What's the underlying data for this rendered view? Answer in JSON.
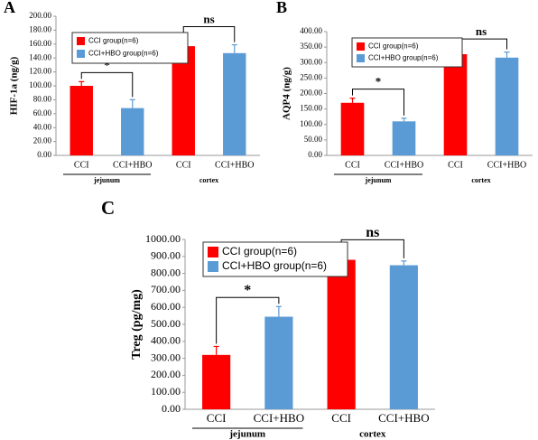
{
  "chart_data": [
    {
      "type": "bar",
      "panel": "A",
      "ylabel": "HIF-1a (ng/g)",
      "categories": [
        "CCI",
        "CCI+HBO",
        "CCI",
        "CCI+HBO"
      ],
      "group_labels": [
        "jejunum",
        "cortex"
      ],
      "series": [
        {
          "name": "CCI group(n=6)",
          "color": "#ff0000",
          "values": [
            100,
            null,
            157,
            null
          ],
          "errors": [
            6,
            null,
            15,
            null
          ]
        },
        {
          "name": "CCI+HBO group(n=6)",
          "color": "#5b9bd5",
          "values": [
            null,
            68,
            null,
            147
          ],
          "errors": [
            null,
            12,
            null,
            12
          ]
        }
      ],
      "annotations": [
        "*",
        "ns"
      ],
      "ylim": [
        0,
        200
      ],
      "yticks": [
        {
          "value": 0,
          "label": "0.00"
        },
        {
          "value": 20,
          "label": "20.00"
        },
        {
          "value": 40,
          "label": "40.00"
        },
        {
          "value": 60,
          "label": "60.00"
        },
        {
          "value": 80,
          "label": "80.00"
        },
        {
          "value": 100,
          "label": "100.00"
        },
        {
          "value": 120,
          "label": "120.00"
        },
        {
          "value": 140,
          "label": "140.00"
        },
        {
          "value": 160,
          "label": "160.00"
        },
        {
          "value": 180,
          "label": "180.00"
        },
        {
          "value": 200,
          "label": "200.00"
        }
      ]
    },
    {
      "type": "bar",
      "panel": "B",
      "ylabel": "AQP4 (ng/g)",
      "categories": [
        "CCI",
        "CCI+HBO",
        "CCI",
        "CCI+HBO"
      ],
      "group_labels": [
        "jejunum",
        "cortex"
      ],
      "series": [
        {
          "name": "CCI group(n=6)",
          "color": "#ff0000",
          "values": [
            170,
            null,
            327,
            null
          ],
          "errors": [
            15,
            null,
            20,
            null
          ]
        },
        {
          "name": "CCI+HBO group(n=6)",
          "color": "#5b9bd5",
          "values": [
            null,
            110,
            null,
            316
          ],
          "errors": [
            null,
            10,
            null,
            18
          ]
        }
      ],
      "annotations": [
        "*",
        "ns"
      ],
      "ylim": [
        0,
        400
      ],
      "yticks": [
        {
          "value": 0,
          "label": "0.00"
        },
        {
          "value": 50,
          "label": "50.00"
        },
        {
          "value": 100,
          "label": "100.00"
        },
        {
          "value": 150,
          "label": "150.00"
        },
        {
          "value": 200,
          "label": "200.00"
        },
        {
          "value": 250,
          "label": "250.00"
        },
        {
          "value": 300,
          "label": "300.00"
        },
        {
          "value": 350,
          "label": "350.00"
        },
        {
          "value": 400,
          "label": "400.00"
        }
      ]
    },
    {
      "type": "bar",
      "panel": "C",
      "ylabel": "Treg (pg/mg)",
      "categories": [
        "CCI",
        "CCI+HBO",
        "CCI",
        "CCI+HBO"
      ],
      "group_labels": [
        "jejunum",
        "cortex"
      ],
      "series": [
        {
          "name": "CCI group(n=6)",
          "color": "#ff0000",
          "values": [
            320,
            null,
            880,
            null
          ],
          "errors": [
            50,
            null,
            65,
            null
          ]
        },
        {
          "name": "CCI+HBO group(n=6)",
          "color": "#5b9bd5",
          "values": [
            null,
            545,
            null,
            848
          ],
          "errors": [
            null,
            60,
            null,
            25
          ]
        }
      ],
      "annotations": [
        "*",
        "ns"
      ],
      "ylim": [
        0,
        1000
      ],
      "yticks": [
        {
          "value": 0,
          "label": "0.00"
        },
        {
          "value": 100,
          "label": "100.00"
        },
        {
          "value": 200,
          "label": "200.00"
        },
        {
          "value": 300,
          "label": "300.00"
        },
        {
          "value": 400,
          "label": "400.00"
        },
        {
          "value": 500,
          "label": "500.00"
        },
        {
          "value": 600,
          "label": "600.00"
        },
        {
          "value": 700,
          "label": "700.00"
        },
        {
          "value": 800,
          "label": "800.00"
        },
        {
          "value": 900,
          "label": "900.00"
        },
        {
          "value": 1000,
          "label": "1000.00"
        }
      ]
    }
  ]
}
